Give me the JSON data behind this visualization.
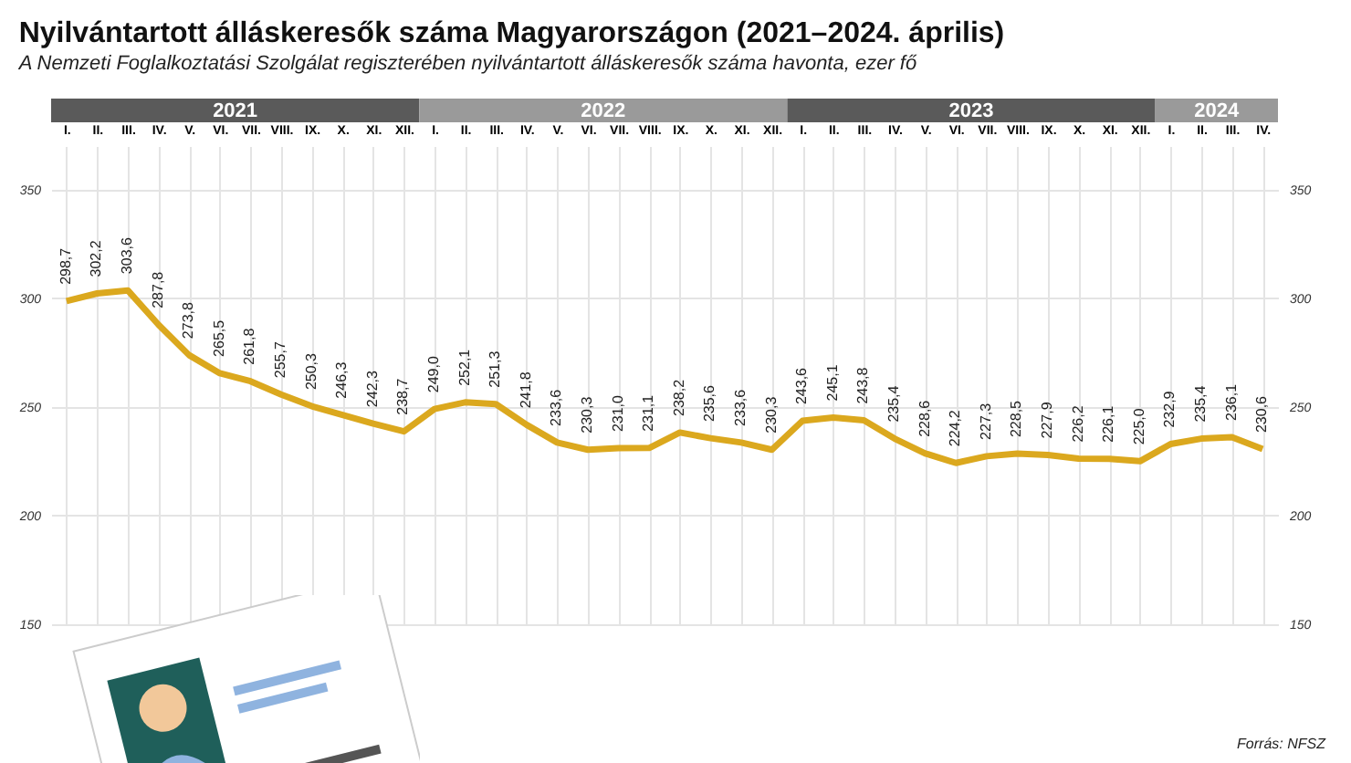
{
  "chart_data": {
    "type": "line",
    "title": "Nyilvántartott álláskeresők száma Magyarországon (2021–2024. április)",
    "subtitle": "A Nemzeti Foglalkoztatási Szolgálat regiszterében nyilvántartott álláskeresők száma havonta, ezer fő",
    "categories": [
      "I.",
      "II.",
      "III.",
      "IV.",
      "V.",
      "VI.",
      "VII.",
      "VIII.",
      "IX.",
      "X.",
      "XI.",
      "XII.",
      "I.",
      "II.",
      "III.",
      "IV.",
      "V.",
      "VI.",
      "VII.",
      "VIII.",
      "IX.",
      "X.",
      "XI.",
      "XII.",
      "I.",
      "II.",
      "III.",
      "IV.",
      "V.",
      "VI.",
      "VII.",
      "VIII.",
      "IX.",
      "X.",
      "XI.",
      "XII.",
      "I.",
      "II.",
      "III.",
      "IV."
    ],
    "series": [
      {
        "color": "#dba81e",
        "values": [
          298.7,
          302.2,
          303.6,
          287.8,
          273.8,
          265.5,
          261.8,
          255.7,
          250.3,
          246.3,
          242.3,
          238.7,
          249.0,
          252.1,
          251.3,
          241.8,
          233.6,
          230.3,
          231.0,
          231.1,
          238.2,
          235.6,
          233.6,
          230.3,
          243.6,
          245.1,
          243.8,
          235.4,
          228.6,
          224.2,
          227.3,
          228.5,
          227.9,
          226.2,
          226.1,
          225.0,
          232.9,
          235.4,
          236.1,
          230.6
        ],
        "value_labels": [
          "298,7",
          "302,2",
          "303,6",
          "287,8",
          "273,8",
          "265,5",
          "261,8",
          "255,7",
          "250,3",
          "246,3",
          "242,3",
          "238,7",
          "249,0",
          "252,1",
          "251,3",
          "241,8",
          "233,6",
          "230,3",
          "231,0",
          "231,1",
          "238,2",
          "235,6",
          "233,6",
          "230,3",
          "243,6",
          "245,1",
          "243,8",
          "235,4",
          "228,6",
          "224,2",
          "227,3",
          "228,5",
          "227,9",
          "226,2",
          "226,1",
          "225,0",
          "232,9",
          "235,4",
          "236,1",
          "230,6"
        ]
      }
    ],
    "ylim": [
      150,
      370
    ],
    "yticks": [
      150,
      200,
      250,
      300,
      350
    ],
    "y2lim": [
      150,
      370
    ],
    "y2ticks": [
      150,
      200,
      250,
      300,
      350
    ],
    "grid": true,
    "marker": "none",
    "line_style": "solid",
    "annotations": [
      "2021",
      "2022",
      "2023",
      "2024",
      "Forrás: NFSZ"
    ]
  }
}
